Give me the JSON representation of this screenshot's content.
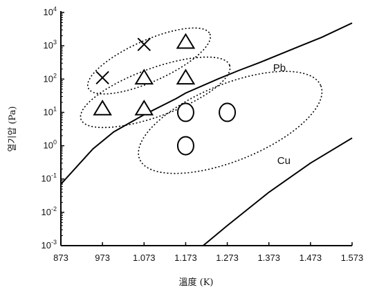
{
  "chart_data": {
    "type": "scatter",
    "title": "",
    "xlabel": "溫度 (K)",
    "ylabel": "열기압 (Pa)",
    "x_ticks": [
      873,
      973,
      1073,
      1173,
      1273,
      1373,
      1473,
      1573
    ],
    "x_tick_labels": [
      "873",
      "973",
      "1.073",
      "1.173",
      "1.273",
      "1.373",
      "1.473",
      "1.573"
    ],
    "xlim": [
      873,
      1573
    ],
    "yscale": "log",
    "ylim": [
      0.001,
      10000
    ],
    "y_tick_base": "10",
    "y_tick_exponents": [
      "4",
      "3",
      "2",
      "1",
      "0",
      "-1",
      "-2",
      "-3"
    ],
    "y_ticks": [
      10000,
      1000,
      100,
      10,
      1,
      0.1,
      0.01,
      0.001
    ],
    "grid": false,
    "curves": [
      {
        "name": "Pb",
        "x": [
          873,
          950,
          1000,
          1073,
          1150,
          1173,
          1250,
          1300,
          1350,
          1400,
          1450,
          1500,
          1573
        ],
        "y": [
          0.07,
          0.8,
          2.6,
          8.5,
          26,
          38,
          100,
          180,
          310,
          560,
          1000,
          1800,
          4800
        ]
      },
      {
        "name": "Cu",
        "x": [
          1215,
          1273,
          1373,
          1473,
          1573
        ],
        "y": [
          0.001,
          0.004,
          0.04,
          0.3,
          1.7
        ]
      }
    ],
    "markers": [
      {
        "symbol": "x",
        "x": 973,
        "y": 110
      },
      {
        "symbol": "x",
        "x": 1073,
        "y": 1100
      },
      {
        "symbol": "triangle",
        "x": 973,
        "y": 13
      },
      {
        "symbol": "triangle",
        "x": 1073,
        "y": 13
      },
      {
        "symbol": "triangle",
        "x": 1073,
        "y": 110
      },
      {
        "symbol": "triangle",
        "x": 1173,
        "y": 110
      },
      {
        "symbol": "triangle",
        "x": 1173,
        "y": 1300
      },
      {
        "symbol": "circle",
        "x": 1173,
        "y": 10
      },
      {
        "symbol": "circle",
        "x": 1273,
        "y": 10
      },
      {
        "symbol": "circle",
        "x": 1173,
        "y": 1
      }
    ],
    "regions": [
      {
        "cx": 1085,
        "cy": 350,
        "rx": 160,
        "ry": 0.62,
        "rotate": -24
      },
      {
        "cx": 1100,
        "cy": 40,
        "rx": 190,
        "ry": 0.72,
        "rotate": -20
      },
      {
        "cx": 1280,
        "cy": 5,
        "rx": 235,
        "ry": 1.15,
        "rotate": -22
      }
    ]
  }
}
